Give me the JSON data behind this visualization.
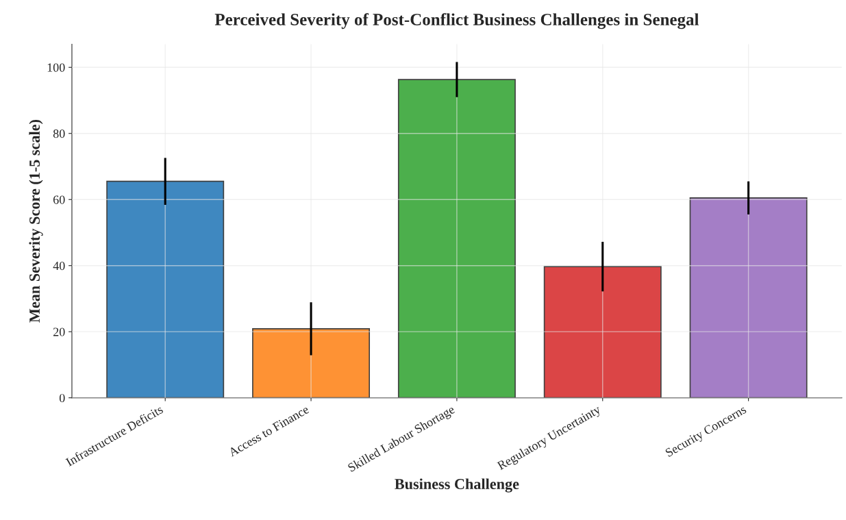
{
  "chart_data": {
    "type": "bar",
    "title": "Perceived Severity of Post-Conflict Business Challenges in Senegal",
    "xlabel": "Business Challenge",
    "ylabel": "Mean Severity Score (1-5 scale)",
    "categories": [
      "Infrastructure Deficits",
      "Access to Finance",
      "Skilled Labour Shortage",
      "Regulatory Uncertainty",
      "Security Concerns"
    ],
    "values": [
      65.5,
      20.9,
      96.3,
      39.7,
      60.5
    ],
    "errors": [
      7.1,
      8.0,
      5.3,
      7.5,
      5.0
    ],
    "colors": [
      "#3f88c0",
      "#fe9234",
      "#4caf4c",
      "#db4546",
      "#a47ec6"
    ],
    "ylim": [
      0,
      107
    ],
    "yticks": [
      0,
      20,
      40,
      60,
      80,
      100
    ],
    "grid": true
  }
}
